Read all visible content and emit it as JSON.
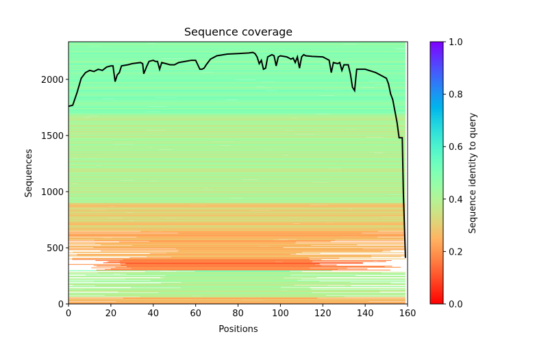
{
  "chart_data": {
    "type": "heatmap",
    "title": "Sequence coverage",
    "xlabel": "Positions",
    "ylabel": "Sequences",
    "xlim": [
      0,
      160
    ],
    "ylim": [
      0,
      2335
    ],
    "xticks": [
      "0",
      "20",
      "40",
      "60",
      "80",
      "100",
      "120",
      "140",
      "160"
    ],
    "yticks": [
      "0",
      "500",
      "1000",
      "1500",
      "2000"
    ],
    "colormap": "rainbow_r",
    "colorbar": {
      "label": "Sequence identity to query",
      "range": [
        0,
        1
      ],
      "ticks": [
        "0.0",
        "0.2",
        "0.4",
        "0.6",
        "0.8",
        "1.0"
      ]
    },
    "identity_bands": [
      {
        "seq_range": [
          0,
          60
        ],
        "identity": 0.25
      },
      {
        "seq_range": [
          60,
          285
        ],
        "identity": 0.4
      },
      {
        "seq_range": [
          285,
          300
        ],
        "identity": 0.52
      },
      {
        "seq_range": [
          300,
          400
        ],
        "identity": 0.16
      },
      {
        "seq_range": [
          400,
          650
        ],
        "identity": 0.24
      },
      {
        "seq_range": [
          650,
          900
        ],
        "identity": 0.3
      },
      {
        "seq_range": [
          900,
          1700
        ],
        "identity": 0.4
      },
      {
        "seq_range": [
          1700,
          2335
        ],
        "identity": 0.48
      }
    ],
    "coverage_line": {
      "color": "#000000",
      "x": [
        0,
        2,
        4,
        6,
        8,
        10,
        12,
        14,
        16,
        18,
        20,
        21,
        22,
        23,
        24,
        25,
        28,
        30,
        32,
        34,
        35,
        35.5,
        37,
        38,
        40,
        41,
        42,
        43,
        44,
        46,
        48,
        50,
        52,
        55,
        58,
        60,
        61,
        62,
        63,
        64,
        65,
        67,
        70,
        75,
        80,
        85,
        87,
        88,
        89,
        90,
        91,
        92,
        93,
        94,
        96,
        97,
        98,
        99,
        100,
        103,
        105,
        106,
        107,
        108,
        109,
        110,
        111,
        112,
        115,
        120,
        122,
        123,
        124,
        125,
        127,
        128,
        129,
        130,
        132,
        133,
        134,
        135,
        136,
        140,
        145,
        148,
        150,
        151,
        152,
        153,
        154,
        155,
        156,
        157,
        157.5,
        158,
        159
      ],
      "y": [
        1760,
        1770,
        1880,
        2010,
        2060,
        2080,
        2070,
        2090,
        2080,
        2110,
        2120,
        2120,
        1980,
        2040,
        2060,
        2120,
        2130,
        2140,
        2145,
        2150,
        2140,
        2050,
        2120,
        2160,
        2170,
        2160,
        2160,
        2090,
        2150,
        2140,
        2130,
        2130,
        2150,
        2160,
        2170,
        2170,
        2130,
        2090,
        2090,
        2100,
        2130,
        2180,
        2210,
        2225,
        2230,
        2235,
        2240,
        2230,
        2200,
        2140,
        2170,
        2090,
        2100,
        2200,
        2220,
        2210,
        2120,
        2200,
        2210,
        2200,
        2180,
        2190,
        2150,
        2200,
        2100,
        2200,
        2220,
        2210,
        2205,
        2200,
        2180,
        2170,
        2060,
        2150,
        2140,
        2150,
        2080,
        2130,
        2130,
        2050,
        1930,
        1900,
        2090,
        2090,
        2060,
        2030,
        2010,
        1960,
        1870,
        1820,
        1720,
        1620,
        1480,
        1480,
        1480,
        1000,
        410
      ]
    }
  }
}
